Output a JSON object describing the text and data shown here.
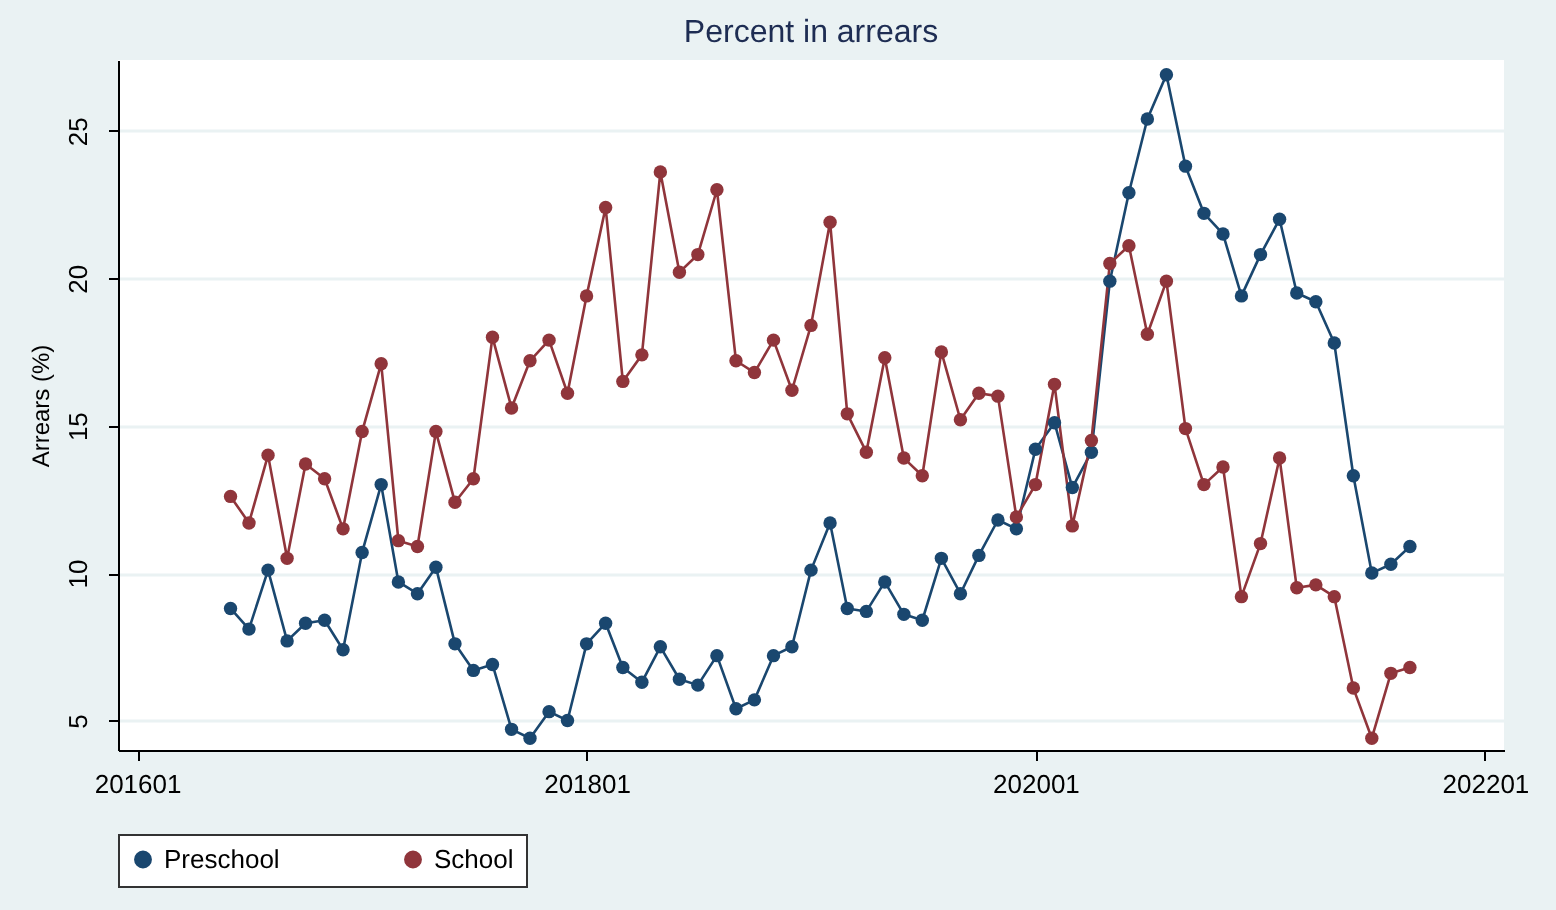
{
  "chart_data": {
    "type": "line",
    "title": "Percent in arrears",
    "ylabel": "Arrears (%)",
    "x": [
      "2016-06",
      "2016-07",
      "2016-08",
      "2016-09",
      "2016-10",
      "2016-11",
      "2016-12",
      "2017-01",
      "2017-02",
      "2017-03",
      "2017-04",
      "2017-05",
      "2017-06",
      "2017-07",
      "2017-08",
      "2017-09",
      "2017-10",
      "2017-11",
      "2017-12",
      "2018-01",
      "2018-02",
      "2018-03",
      "2018-04",
      "2018-05",
      "2018-06",
      "2018-07",
      "2018-08",
      "2018-09",
      "2018-10",
      "2018-11",
      "2018-12",
      "2019-01",
      "2019-02",
      "2019-03",
      "2019-04",
      "2019-05",
      "2019-06",
      "2019-07",
      "2019-08",
      "2019-09",
      "2019-10",
      "2019-11",
      "2019-12",
      "2020-01",
      "2020-02",
      "2020-03",
      "2020-04",
      "2020-05",
      "2020-06",
      "2020-07",
      "2020-08",
      "2020-09",
      "2020-10",
      "2020-11",
      "2020-12",
      "2021-01",
      "2021-02",
      "2021-03",
      "2021-04",
      "2021-05",
      "2021-06",
      "2021-07",
      "2021-08",
      "2021-09"
    ],
    "series": [
      {
        "name": "Preschool",
        "color": "#1a476f",
        "values": [
          8.8,
          8.1,
          10.1,
          7.7,
          8.3,
          8.4,
          7.4,
          10.7,
          13.0,
          9.7,
          9.3,
          10.2,
          7.6,
          6.7,
          6.9,
          4.7,
          4.4,
          5.3,
          5.0,
          7.6,
          8.3,
          6.8,
          6.3,
          7.5,
          6.4,
          6.2,
          7.2,
          5.4,
          5.7,
          7.2,
          7.5,
          10.1,
          11.7,
          8.8,
          8.7,
          9.7,
          8.6,
          8.4,
          10.5,
          9.3,
          10.6,
          11.8,
          11.5,
          14.2,
          15.1,
          12.9,
          14.1,
          19.9,
          22.9,
          25.4,
          26.9,
          23.8,
          22.2,
          21.5,
          19.4,
          20.8,
          22.0,
          19.5,
          19.2,
          17.8,
          13.3,
          10.0,
          10.3,
          10.9
        ]
      },
      {
        "name": "School",
        "color": "#90353b",
        "values": [
          12.6,
          11.7,
          14.0,
          10.5,
          13.7,
          13.2,
          11.5,
          14.8,
          17.1,
          11.1,
          10.9,
          14.8,
          12.4,
          13.2,
          18.0,
          15.6,
          17.2,
          17.9,
          16.1,
          19.4,
          22.4,
          16.5,
          17.4,
          23.6,
          20.2,
          20.8,
          23.0,
          17.2,
          16.8,
          17.9,
          16.2,
          18.4,
          21.9,
          15.4,
          14.1,
          17.3,
          13.9,
          13.3,
          17.5,
          15.2,
          16.1,
          16.0,
          11.9,
          13.0,
          16.4,
          11.6,
          14.5,
          20.5,
          21.1,
          18.1,
          19.9,
          14.9,
          13.0,
          13.6,
          9.2,
          11.0,
          13.9,
          9.5,
          9.6,
          9.2,
          6.1,
          4.4,
          6.6,
          6.8
        ]
      }
    ],
    "xlim": [
      "2015-12",
      "2022-02"
    ],
    "xticks": [
      {
        "value": "2016-01",
        "label": "201601"
      },
      {
        "value": "2018-01",
        "label": "201801"
      },
      {
        "value": "2020-01",
        "label": "202001"
      },
      {
        "value": "2022-01",
        "label": "202201"
      }
    ],
    "ylim": [
      4,
      27.4
    ],
    "yticks": [
      5,
      10,
      15,
      20,
      25
    ],
    "grid": "y",
    "legend": "bottom",
    "marker": "circle",
    "line_style": "solid"
  }
}
